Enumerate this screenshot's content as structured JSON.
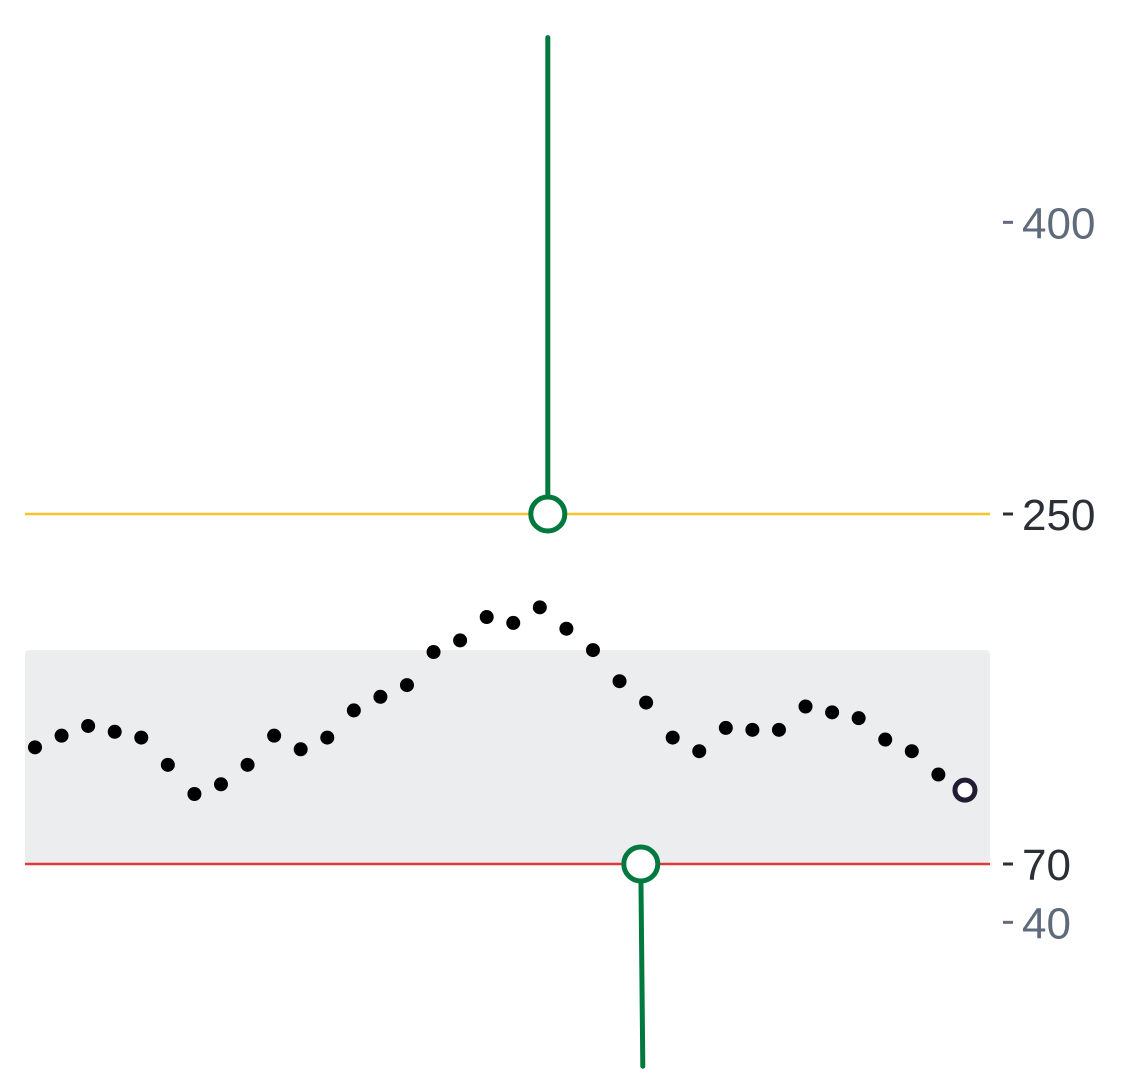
{
  "chart_data": {
    "type": "scatter",
    "title": "",
    "xlabel": "",
    "ylabel": "",
    "axis": {
      "position": "right",
      "ylim": [
        -10,
        430
      ],
      "ticks": [
        {
          "value": 400,
          "label": "400",
          "color": "#5f6b7a"
        },
        {
          "value": 250,
          "label": "250",
          "color": "#2b2f36"
        },
        {
          "value": 70,
          "label": "70",
          "color": "#2b2f36"
        },
        {
          "value": 40,
          "label": "40",
          "color": "#5f6b7a"
        }
      ]
    },
    "range_band": {
      "low": 70,
      "high": 180,
      "color": "#ecedef"
    },
    "threshold_lines": [
      {
        "value": 250,
        "color": "#f7c52b"
      },
      {
        "value": 70,
        "color": "#e0393e"
      }
    ],
    "series": [
      {
        "color": "#000000",
        "points": [
          {
            "x": 0,
            "y": 130
          },
          {
            "x": 1,
            "y": 136
          },
          {
            "x": 2,
            "y": 141
          },
          {
            "x": 3,
            "y": 138
          },
          {
            "x": 4,
            "y": 135
          },
          {
            "x": 5,
            "y": 121
          },
          {
            "x": 6,
            "y": 106
          },
          {
            "x": 7,
            "y": 111
          },
          {
            "x": 8,
            "y": 121
          },
          {
            "x": 9,
            "y": 136
          },
          {
            "x": 10,
            "y": 129
          },
          {
            "x": 11,
            "y": 135
          },
          {
            "x": 12,
            "y": 149
          },
          {
            "x": 13,
            "y": 156
          },
          {
            "x": 14,
            "y": 162
          },
          {
            "x": 15,
            "y": 179
          },
          {
            "x": 16,
            "y": 185
          },
          {
            "x": 17,
            "y": 197
          },
          {
            "x": 18,
            "y": 194
          },
          {
            "x": 19,
            "y": 202
          },
          {
            "x": 20,
            "y": 191
          },
          {
            "x": 21,
            "y": 180
          },
          {
            "x": 22,
            "y": 164
          },
          {
            "x": 23,
            "y": 153
          },
          {
            "x": 24,
            "y": 135
          },
          {
            "x": 25,
            "y": 128
          },
          {
            "x": 26,
            "y": 140
          },
          {
            "x": 27,
            "y": 139
          },
          {
            "x": 28,
            "y": 139
          },
          {
            "x": 29,
            "y": 151
          },
          {
            "x": 30,
            "y": 148
          },
          {
            "x": 31,
            "y": 145
          },
          {
            "x": 32,
            "y": 134
          },
          {
            "x": 33,
            "y": 128
          },
          {
            "x": 34,
            "y": 116
          }
        ],
        "last_point": {
          "x": 35,
          "y": 108,
          "color": "#241c33"
        }
      }
    ],
    "markers": [
      {
        "x": 19.3,
        "y": 250,
        "line_to": 495,
        "color": "#00793f"
      },
      {
        "x": 22.8,
        "y": 70,
        "line_to": -34,
        "color": "#00793f"
      }
    ]
  }
}
